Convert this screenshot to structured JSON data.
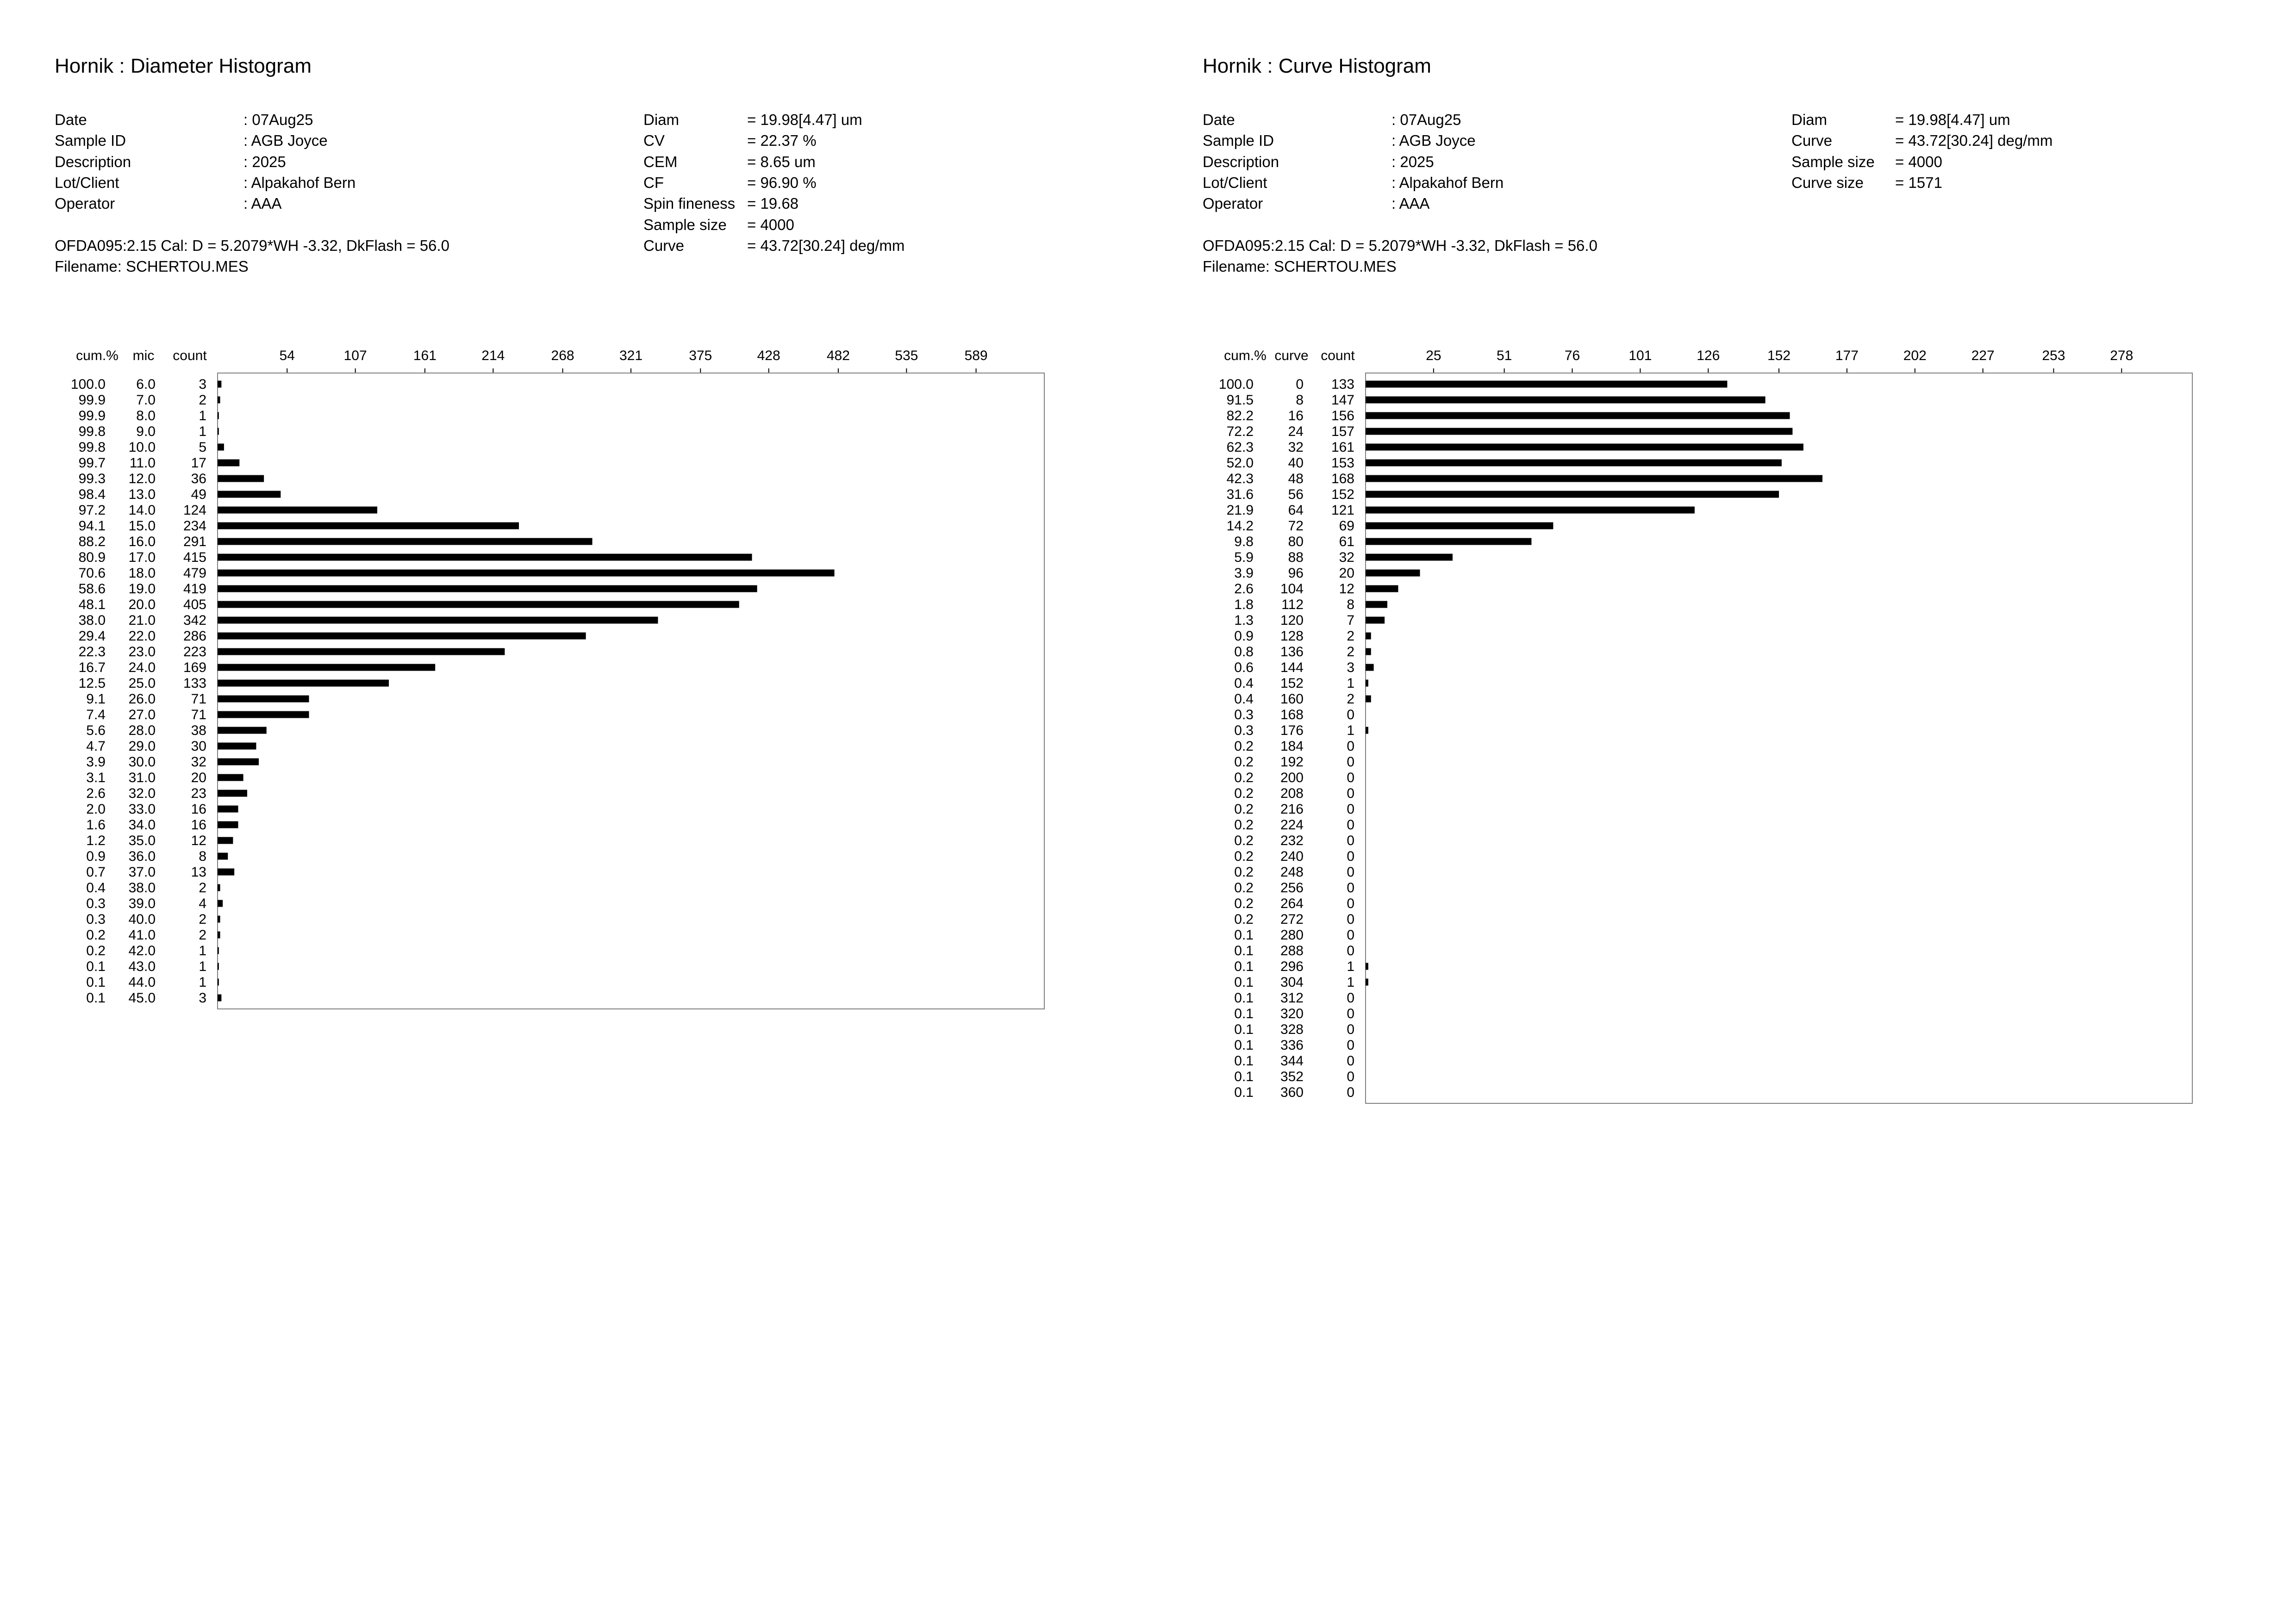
{
  "chart_data": [
    {
      "type": "bar",
      "title": "Hornik : Diameter Histogram",
      "info_left": [
        {
          "label": "Date",
          "value": ": 07Aug25"
        },
        {
          "label": "Sample ID",
          "value": ": AGB Joyce"
        },
        {
          "label": "Description",
          "value": ": 2025"
        },
        {
          "label": "Lot/Client",
          "value": ": Alpakahof Bern"
        },
        {
          "label": "Operator",
          "value": ": AAA"
        }
      ],
      "info_right": [
        {
          "label": "Diam",
          "value": "=  19.98[4.47] um"
        },
        {
          "label": "CV",
          "value": "=  22.37 %"
        },
        {
          "label": "CEM",
          "value": "=  8.65 um"
        },
        {
          "label": "CF",
          "value": "=  96.90 %"
        },
        {
          "label": "Spin fineness",
          "value": "=  19.68"
        },
        {
          "label": "Sample size",
          "value": "=  4000"
        },
        {
          "label": "Curve",
          "value": "=  43.72[30.24] deg/mm"
        }
      ],
      "calibration": "OFDA095:2.15 Cal: D = 5.2079*WH -3.32, DkFlash =  56.0",
      "filename": "Filename: SCHERTOU.MES",
      "column_headers": [
        "cum.%",
        "mic",
        "count"
      ],
      "x_ticks": [
        "54",
        "107",
        "161",
        "214",
        "268",
        "321",
        "375",
        "428",
        "482",
        "535",
        "589"
      ],
      "xlim": [
        0,
        642
      ],
      "cum": [
        "100.0",
        "99.9",
        "99.9",
        "99.8",
        "99.8",
        "99.7",
        "99.3",
        "98.4",
        "97.2",
        "94.1",
        "88.2",
        "80.9",
        "70.6",
        "58.6",
        "48.1",
        "38.0",
        "29.4",
        "22.3",
        "16.7",
        "12.5",
        "9.1",
        "7.4",
        "5.6",
        "4.7",
        "3.9",
        "3.1",
        "2.6",
        "2.0",
        "1.6",
        "1.2",
        "0.9",
        "0.7",
        "0.4",
        "0.3",
        "0.3",
        "0.2",
        "0.2",
        "0.1",
        "0.1",
        "0.1"
      ],
      "categories": [
        "6.0",
        "7.0",
        "8.0",
        "9.0",
        "10.0",
        "11.0",
        "12.0",
        "13.0",
        "14.0",
        "15.0",
        "16.0",
        "17.0",
        "18.0",
        "19.0",
        "20.0",
        "21.0",
        "22.0",
        "23.0",
        "24.0",
        "25.0",
        "26.0",
        "27.0",
        "28.0",
        "29.0",
        "30.0",
        "31.0",
        "32.0",
        "33.0",
        "34.0",
        "35.0",
        "36.0",
        "37.0",
        "38.0",
        "39.0",
        "40.0",
        "41.0",
        "42.0",
        "43.0",
        "44.0",
        "45.0"
      ],
      "values": [
        3,
        2,
        1,
        1,
        5,
        17,
        36,
        49,
        124,
        234,
        291,
        415,
        479,
        419,
        405,
        342,
        286,
        223,
        169,
        133,
        71,
        71,
        38,
        30,
        32,
        20,
        23,
        16,
        16,
        12,
        8,
        13,
        2,
        4,
        2,
        2,
        1,
        1,
        1,
        3
      ]
    },
    {
      "type": "bar",
      "title": "Hornik : Curve Histogram",
      "info_left": [
        {
          "label": "Date",
          "value": ": 07Aug25"
        },
        {
          "label": "Sample ID",
          "value": ": AGB Joyce"
        },
        {
          "label": "Description",
          "value": ": 2025"
        },
        {
          "label": "Lot/Client",
          "value": ": Alpakahof Bern"
        },
        {
          "label": "Operator",
          "value": ": AAA"
        }
      ],
      "info_right": [
        {
          "label": "Diam",
          "value": "=  19.98[4.47] um"
        },
        {
          "label": "Curve",
          "value": "=  43.72[30.24] deg/mm"
        },
        {
          "label": "Sample size",
          "value": "=  4000"
        },
        {
          "label": "Curve size",
          "value": "=  1571"
        }
      ],
      "calibration": "OFDA095:2.15 Cal: D = 5.2079*WH -3.32, DkFlash =  56.0",
      "filename": "Filename: SCHERTOU.MES",
      "column_headers": [
        "cum.%",
        "curve",
        "count"
      ],
      "x_ticks": [
        "25",
        "51",
        "76",
        "101",
        "126",
        "152",
        "177",
        "202",
        "227",
        "253",
        "278"
      ],
      "xlim": [
        0,
        304
      ],
      "cum": [
        "100.0",
        "91.5",
        "82.2",
        "72.2",
        "62.3",
        "52.0",
        "42.3",
        "31.6",
        "21.9",
        "14.2",
        "9.8",
        "5.9",
        "3.9",
        "2.6",
        "1.8",
        "1.3",
        "0.9",
        "0.8",
        "0.6",
        "0.4",
        "0.4",
        "0.3",
        "0.3",
        "0.2",
        "0.2",
        "0.2",
        "0.2",
        "0.2",
        "0.2",
        "0.2",
        "0.2",
        "0.2",
        "0.2",
        "0.2",
        "0.2",
        "0.1",
        "0.1",
        "0.1",
        "0.1",
        "0.1",
        "0.1",
        "0.1",
        "0.1",
        "0.1",
        "0.1",
        "0.1"
      ],
      "categories": [
        "0",
        "8",
        "16",
        "24",
        "32",
        "40",
        "48",
        "56",
        "64",
        "72",
        "80",
        "88",
        "96",
        "104",
        "112",
        "120",
        "128",
        "136",
        "144",
        "152",
        "160",
        "168",
        "176",
        "184",
        "192",
        "200",
        "208",
        "216",
        "224",
        "232",
        "240",
        "248",
        "256",
        "264",
        "272",
        "280",
        "288",
        "296",
        "304",
        "312",
        "320",
        "328",
        "336",
        "344",
        "352",
        "360"
      ],
      "values": [
        133,
        147,
        156,
        157,
        161,
        153,
        168,
        152,
        121,
        69,
        61,
        32,
        20,
        12,
        8,
        7,
        2,
        2,
        3,
        1,
        2,
        0,
        1,
        0,
        0,
        0,
        0,
        0,
        0,
        0,
        0,
        0,
        0,
        0,
        0,
        0,
        0,
        1,
        1,
        0,
        0,
        0,
        0,
        0,
        0,
        0
      ]
    }
  ]
}
